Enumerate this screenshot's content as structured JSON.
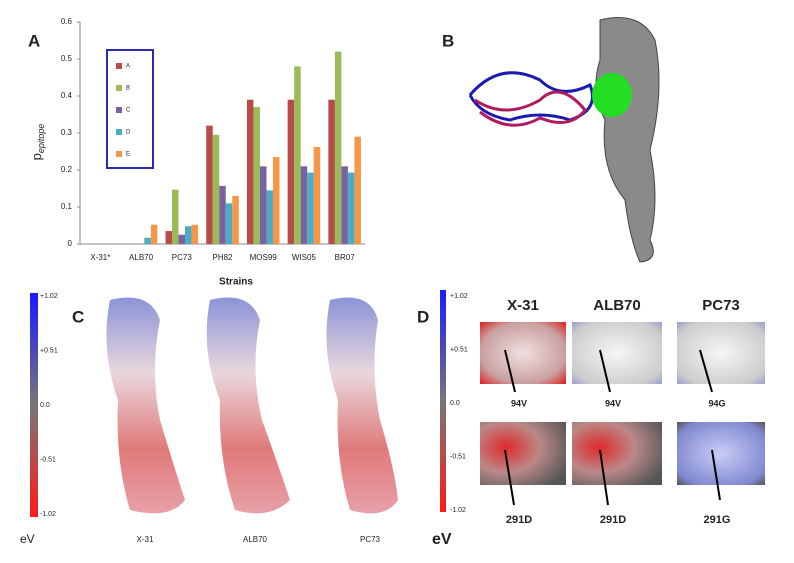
{
  "chart_data": {
    "type": "bar",
    "panel": "A",
    "categories": [
      "X-31*",
      "ALB70",
      "PC73",
      "PH82",
      "MOS99",
      "WIS05",
      "BR07"
    ],
    "series": [
      {
        "name": "A",
        "color": "#b84c4a",
        "values": [
          0,
          0,
          0.035,
          0.32,
          0.39,
          0.39,
          0.39
        ]
      },
      {
        "name": "B",
        "color": "#9bbb59",
        "values": [
          0,
          0,
          0.147,
          0.295,
          0.37,
          0.48,
          0.52
        ]
      },
      {
        "name": "C",
        "color": "#7a62a0",
        "values": [
          0,
          0,
          0.025,
          0.157,
          0.21,
          0.21,
          0.21
        ]
      },
      {
        "name": "D",
        "color": "#4bacc6",
        "values": [
          0,
          0.017,
          0.048,
          0.11,
          0.145,
          0.193,
          0.193
        ]
      },
      {
        "name": "E",
        "color": "#f79646",
        "values": [
          0,
          0.052,
          0.052,
          0.13,
          0.235,
          0.262,
          0.29
        ]
      }
    ],
    "ylim": [
      0,
      0.6
    ],
    "yticks": [
      0,
      0.1,
      0.2,
      0.3,
      0.4,
      0.5,
      0.6
    ],
    "ylabel": "p",
    "ylabel_sub": "epitope",
    "xlabel": "Strains"
  },
  "panel_b": {
    "label": "B"
  },
  "panel_c": {
    "label": "C",
    "colorbar": [
      "+1.02",
      "+0.51",
      "0.0",
      "-0.51",
      "-1.02"
    ],
    "unit": "eV",
    "strains": [
      "X-31",
      "ALB70",
      "PC73"
    ]
  },
  "panel_d": {
    "label": "D",
    "colorbar": [
      "+1.02",
      "+0.51",
      "0.0",
      "-0.51",
      "-1.02"
    ],
    "unit": "eV",
    "strains": [
      "X-31",
      "ALB70",
      "PC73"
    ],
    "row1": [
      {
        "text": "94V",
        "color": "#2233cc"
      },
      {
        "text": "94V",
        "color": "#2233cc"
      },
      {
        "text": "94G",
        "color": "#e02020"
      }
    ],
    "row2": [
      {
        "text": "291D",
        "color": "#2233cc"
      },
      {
        "text": "291D",
        "color": "#2233cc"
      },
      {
        "text": "291G",
        "color": "#e02020"
      }
    ]
  }
}
